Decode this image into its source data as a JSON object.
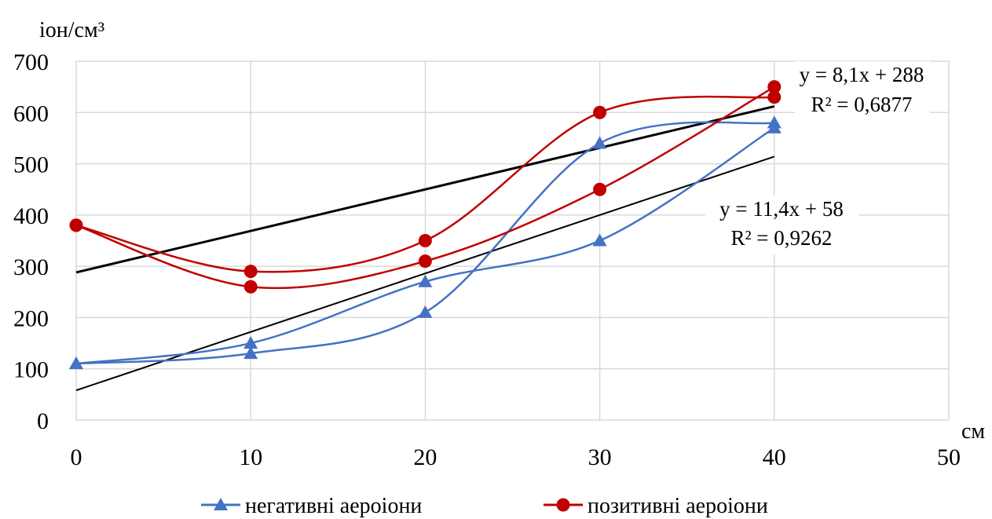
{
  "chart_data": {
    "type": "line",
    "title": "",
    "ylabel": "іон/см³",
    "xlabel": "см",
    "xlim": [
      0,
      50
    ],
    "ylim": [
      0,
      700
    ],
    "x_ticks": [
      0,
      10,
      20,
      30,
      40,
      50
    ],
    "y_ticks": [
      0,
      100,
      200,
      300,
      400,
      500,
      600,
      700
    ],
    "grid": "vertical and horizontal",
    "legend_position": "bottom",
    "legend": [
      {
        "label": "негативні аероіони",
        "color": "#4472C4",
        "marker": "triangle"
      },
      {
        "label": "позитивні аероіони",
        "color": "#C00000",
        "marker": "circle"
      }
    ],
    "series": [
      {
        "legend_index": 0,
        "color": "#4472C4",
        "marker": "triangle",
        "smooth": true,
        "x": [
          0,
          10,
          20,
          30,
          40
        ],
        "y": [
          110,
          150,
          270,
          350,
          570
        ]
      },
      {
        "legend_index": 0,
        "color": "#4472C4",
        "marker": "triangle",
        "smooth": true,
        "x": [
          0,
          10,
          20,
          30,
          40
        ],
        "y": [
          110,
          130,
          210,
          540,
          580
        ]
      },
      {
        "legend_index": 1,
        "color": "#C00000",
        "marker": "circle",
        "smooth": true,
        "x": [
          0,
          10,
          20,
          30,
          40
        ],
        "y": [
          380,
          260,
          310,
          450,
          650
        ]
      },
      {
        "legend_index": 1,
        "color": "#C00000",
        "marker": "circle",
        "smooth": true,
        "x": [
          0,
          10,
          20,
          30,
          40
        ],
        "y": [
          380,
          290,
          350,
          600,
          630
        ]
      }
    ],
    "trendlines": [
      {
        "slope": 8.1,
        "intercept": 288,
        "x_range": [
          0,
          40
        ],
        "color": "#000000",
        "width": 3,
        "equation": "y = 8,1x + 288",
        "r2": "R² = 0,6877"
      },
      {
        "slope": 11.4,
        "intercept": 58,
        "x_range": [
          0,
          40
        ],
        "color": "#000000",
        "width": 2,
        "equation": "y = 11,4x + 58",
        "r2": "R² = 0,9262"
      }
    ]
  }
}
